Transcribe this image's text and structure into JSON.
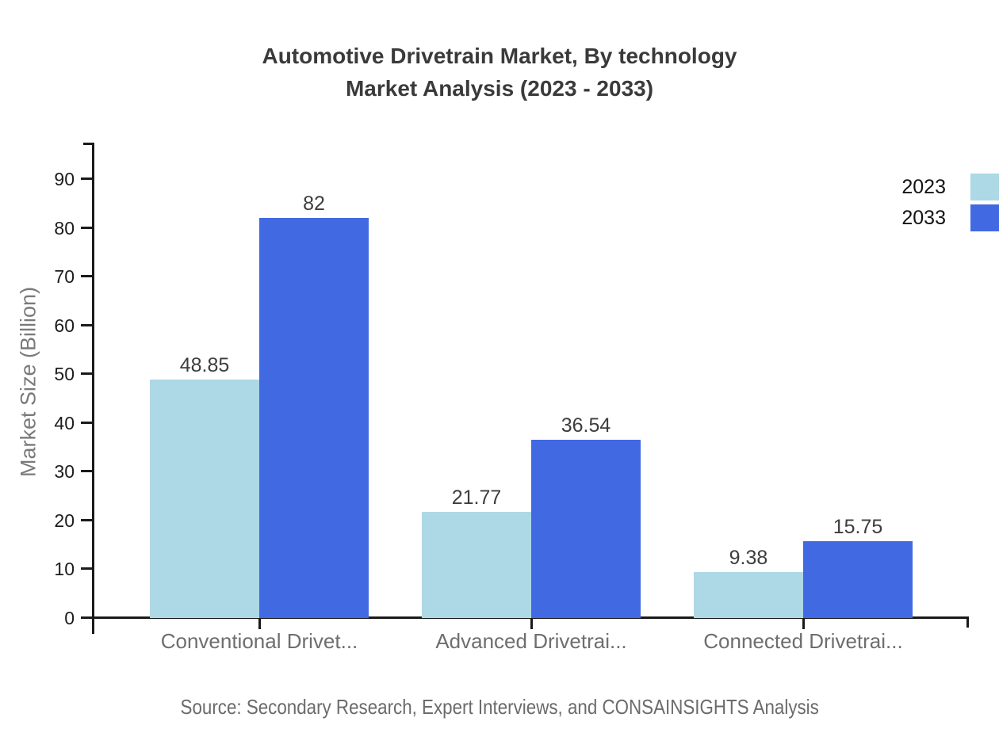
{
  "title": {
    "line1": "Automotive Drivetrain Market, By technology",
    "line2": "Market Analysis (2023 - 2033)"
  },
  "source": "Source: Secondary Research, Expert Interviews, and CONSAINSIGHTS Analysis",
  "legend": [
    {
      "label": "2023",
      "color": "#ADD8E6"
    },
    {
      "label": "2033",
      "color": "#4169E1"
    }
  ],
  "chart_data": {
    "type": "bar",
    "title": "Automotive Drivetrain Market, By technology Market Analysis (2023 - 2033)",
    "categories": [
      "Conventional Drivet...",
      "Advanced Drivetrai...",
      "Connected Drivetrai..."
    ],
    "series": [
      {
        "name": "2023",
        "color": "#ADD8E6",
        "values": [
          48.85,
          21.77,
          9.38
        ]
      },
      {
        "name": "2033",
        "color": "#4169E1",
        "values": [
          82,
          36.54,
          15.75
        ]
      }
    ],
    "value_labels": [
      "48.85",
      "82",
      "21.77",
      "36.54",
      "9.38",
      "15.75"
    ],
    "xlabel": "",
    "ylabel": "Market Size (Billion)",
    "yticks": [
      0,
      10,
      20,
      30,
      40,
      50,
      60,
      70,
      80,
      90
    ],
    "ylim": [
      0,
      97.5
    ],
    "grid": false,
    "legend_position": "top-right"
  }
}
